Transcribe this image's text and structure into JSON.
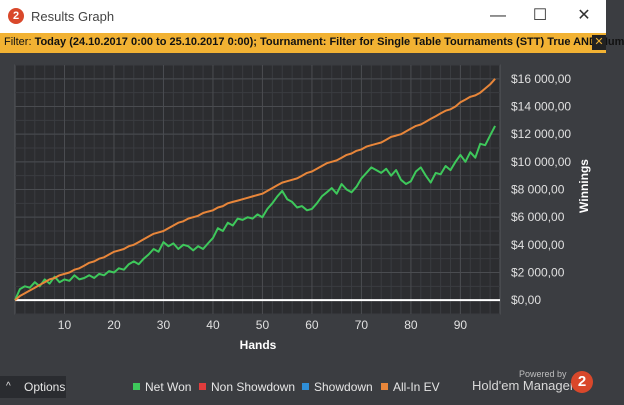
{
  "window": {
    "title": "Results Graph",
    "minimize": "—",
    "maximize": "☐",
    "close": "✕",
    "app_icon": "2"
  },
  "filter": {
    "label": "Filter:",
    "text": "Today (24.10.2017 0:00 to 25.10.2017 0:00); Tournament: Filter for Single Table Tournaments (STT) True AND Num",
    "close_icon": "x-icon"
  },
  "chart_data": {
    "type": "line",
    "xlabel": "Hands",
    "ylabel": "Winnings",
    "xlim": [
      0,
      98
    ],
    "ylim": [
      -1000,
      17000
    ],
    "x_ticks": [
      10,
      20,
      30,
      40,
      50,
      60,
      70,
      80,
      90
    ],
    "y_ticks": [
      0,
      2000,
      4000,
      6000,
      8000,
      10000,
      12000,
      14000,
      16000
    ],
    "y_tick_labels": [
      "$0,00",
      "$2 000,00",
      "$4 000,00",
      "$6 000,00",
      "$8 000,00",
      "$10 000,00",
      "$12 000,00",
      "$14 000,00",
      "$16 000,00"
    ],
    "grid": true,
    "legend_position": "bottom",
    "series": [
      {
        "name": "Net Won",
        "color": "#3ec85b",
        "visible": true,
        "x": [
          0,
          1,
          2,
          3,
          4,
          5,
          6,
          7,
          8,
          9,
          10,
          11,
          12,
          13,
          14,
          15,
          16,
          17,
          18,
          19,
          20,
          21,
          22,
          23,
          24,
          25,
          26,
          27,
          28,
          29,
          30,
          31,
          32,
          33,
          34,
          35,
          36,
          37,
          38,
          39,
          40,
          41,
          42,
          43,
          44,
          45,
          46,
          47,
          48,
          49,
          50,
          51,
          52,
          53,
          54,
          55,
          56,
          57,
          58,
          59,
          60,
          61,
          62,
          63,
          64,
          65,
          66,
          67,
          68,
          69,
          70,
          71,
          72,
          73,
          74,
          75,
          76,
          77,
          78,
          79,
          80,
          81,
          82,
          83,
          84,
          85,
          86,
          87,
          88,
          89,
          90,
          91,
          92,
          93,
          94,
          95,
          96,
          97
        ],
        "y": [
          0,
          800,
          1000,
          900,
          1300,
          1000,
          1500,
          1200,
          1700,
          1300,
          1500,
          1400,
          1800,
          1500,
          1600,
          1800,
          1600,
          1900,
          1800,
          2100,
          2000,
          2300,
          2200,
          2600,
          2800,
          2600,
          3000,
          3300,
          3700,
          3500,
          4200,
          3900,
          4100,
          3700,
          4000,
          3900,
          3600,
          3900,
          3700,
          4100,
          4500,
          5200,
          5000,
          5600,
          5400,
          5900,
          5800,
          6000,
          5900,
          6200,
          6000,
          6600,
          7000,
          7500,
          7900,
          7300,
          7100,
          6700,
          6800,
          6500,
          6600,
          7000,
          7500,
          7800,
          8100,
          7700,
          8400,
          8000,
          7800,
          8200,
          8800,
          9200,
          9600,
          9400,
          9200,
          9500,
          9000,
          9400,
          8700,
          8400,
          8600,
          9300,
          9600,
          9000,
          8500,
          9200,
          9100,
          9700,
          9400,
          10000,
          10500,
          10000,
          10700,
          10300,
          11300,
          11200,
          11900,
          12600
        ]
      },
      {
        "name": "Non Showdown",
        "color": "#e03c3c",
        "visible": false
      },
      {
        "name": "Showdown",
        "color": "#2f8fd8",
        "visible": false
      },
      {
        "name": "All-In EV",
        "color": "#e8863a",
        "visible": true,
        "x": [
          0,
          1,
          2,
          3,
          4,
          5,
          6,
          7,
          8,
          9,
          10,
          11,
          12,
          13,
          14,
          15,
          16,
          17,
          18,
          19,
          20,
          21,
          22,
          23,
          24,
          25,
          26,
          27,
          28,
          29,
          30,
          31,
          32,
          33,
          34,
          35,
          36,
          37,
          38,
          39,
          40,
          41,
          42,
          43,
          44,
          45,
          46,
          47,
          48,
          49,
          50,
          51,
          52,
          53,
          54,
          55,
          56,
          57,
          58,
          59,
          60,
          61,
          62,
          63,
          64,
          65,
          66,
          67,
          68,
          69,
          70,
          71,
          72,
          73,
          74,
          75,
          76,
          77,
          78,
          79,
          80,
          81,
          82,
          83,
          84,
          85,
          86,
          87,
          88,
          89,
          90,
          91,
          92,
          93,
          94,
          95,
          96,
          97
        ],
        "y": [
          0,
          300,
          500,
          700,
          900,
          1100,
          1300,
          1500,
          1600,
          1800,
          1900,
          2000,
          2200,
          2300,
          2500,
          2700,
          2800,
          3000,
          3100,
          3300,
          3500,
          3600,
          3700,
          3900,
          4000,
          4200,
          4400,
          4600,
          4800,
          4900,
          5000,
          5200,
          5400,
          5600,
          5700,
          5900,
          6000,
          6100,
          6300,
          6400,
          6500,
          6700,
          6800,
          7000,
          7100,
          7200,
          7300,
          7400,
          7500,
          7600,
          7700,
          7900,
          8100,
          8300,
          8500,
          8600,
          8700,
          8800,
          9000,
          9200,
          9300,
          9500,
          9700,
          9900,
          10000,
          10100,
          10300,
          10500,
          10600,
          10800,
          10900,
          11100,
          11200,
          11300,
          11400,
          11600,
          11800,
          11900,
          12000,
          12200,
          12400,
          12600,
          12700,
          12900,
          13100,
          13300,
          13500,
          13700,
          13800,
          14000,
          14300,
          14500,
          14700,
          14800,
          15000,
          15300,
          15600,
          16000
        ]
      }
    ]
  },
  "legend": [
    {
      "label": "Net Won",
      "color": "#3ec85b"
    },
    {
      "label": "Non Showdown",
      "color": "#e03c3c"
    },
    {
      "label": "Showdown",
      "color": "#2f8fd8"
    },
    {
      "label": "All-In EV",
      "color": "#e8863a"
    }
  ],
  "options": {
    "label": "Options",
    "icon": "chevron-up-icon"
  },
  "brand": {
    "powered": "Powered by",
    "name": "Hold'em Manager",
    "logo": "2"
  },
  "colors": {
    "panel": "#3b3d41",
    "plot": "#2c2d30",
    "grid": "#4a4c50",
    "filter_bar": "#f2b233",
    "zero_line": "#ffffff"
  }
}
